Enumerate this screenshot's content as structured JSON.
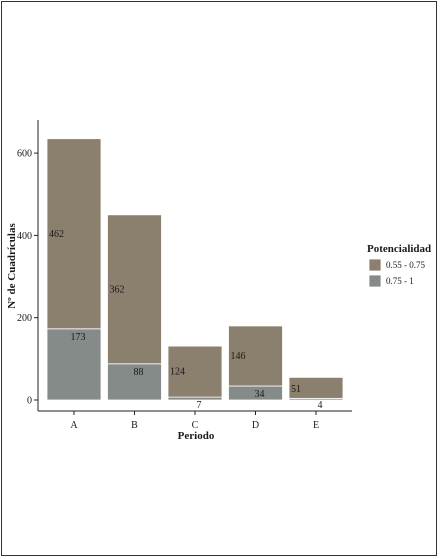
{
  "chart_data": {
    "type": "bar",
    "stacked": true,
    "categories": [
      "A",
      "B",
      "C",
      "D",
      "E"
    ],
    "series": [
      {
        "name": "0.75 - 1",
        "values": [
          173,
          88,
          7,
          34,
          4
        ],
        "color": "#848b89"
      },
      {
        "name": "0.55 - 0.75",
        "values": [
          462,
          362,
          124,
          146,
          51
        ],
        "color": "#8b7f6e"
      }
    ],
    "xlabel": "Periodo",
    "ylabel": "Nº de Cuadrículas",
    "ylim": [
      0,
      660
    ],
    "yticks": [
      0,
      200,
      400,
      600
    ],
    "grid": false,
    "legend": {
      "title": "Potencialidad",
      "placement": "right",
      "items": [
        "0.55 - 0.75",
        "0.75 - 1"
      ]
    }
  }
}
